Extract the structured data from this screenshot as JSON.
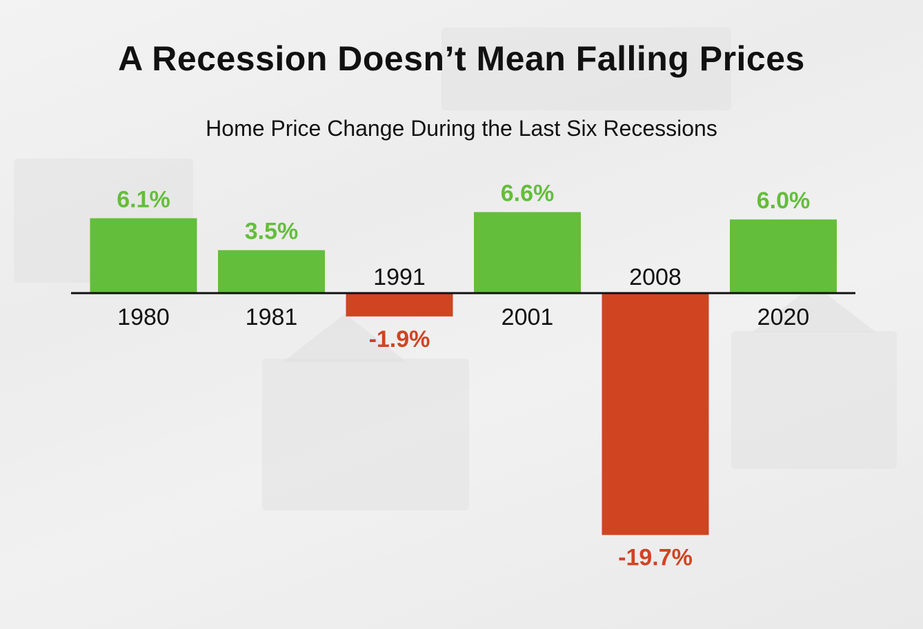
{
  "chart_data": {
    "type": "bar",
    "title": "A Recession Doesn’t Mean Falling Prices",
    "subtitle": "Home Price Change During the Last Six Recessions",
    "categories": [
      "1980",
      "1981",
      "1991",
      "2001",
      "2008",
      "2020"
    ],
    "values": [
      6.1,
      3.5,
      -1.9,
      6.6,
      -19.7,
      6.0
    ],
    "data_labels": [
      "6.1%",
      "3.5%",
      "-1.9%",
      "6.6%",
      "-19.7%",
      "6.0%"
    ],
    "xlabel": "",
    "ylabel": "",
    "grid": false,
    "legend": "none",
    "colors": {
      "positive": "#63BE3B",
      "negative": "#D04422",
      "axis": "#111111",
      "category_text": "#111111"
    }
  }
}
